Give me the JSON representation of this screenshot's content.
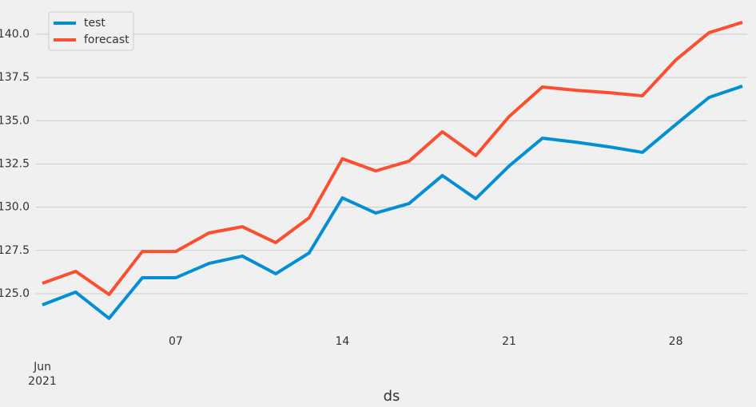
{
  "chart_data": {
    "type": "line",
    "x_label": "ds",
    "categories": [
      "Jun\n2021",
      null,
      null,
      null,
      "07",
      null,
      null,
      null,
      null,
      "14",
      null,
      null,
      null,
      null,
      "21",
      null,
      null,
      null,
      null,
      "28",
      null,
      null
    ],
    "series": [
      {
        "name": "test",
        "color": "#008fd5",
        "values": [
          124.35,
          125.09,
          123.57,
          125.92,
          125.92,
          126.75,
          127.17,
          126.15,
          127.35,
          130.54,
          129.66,
          130.21,
          131.83,
          130.49,
          132.38,
          133.99,
          133.76,
          133.49,
          133.17,
          134.78,
          136.35,
          137.0
        ]
      },
      {
        "name": "forecast",
        "color": "#fc4f30",
        "values": [
          125.6,
          126.29,
          124.95,
          127.44,
          127.44,
          128.51,
          128.87,
          127.95,
          129.38,
          132.8,
          132.1,
          132.66,
          134.36,
          132.98,
          135.24,
          136.95,
          136.76,
          136.62,
          136.44,
          138.51,
          140.09,
          140.69
        ]
      }
    ],
    "ylim": [
      123.06,
      141.75
    ],
    "yticks": [
      {
        "value": 125,
        "label": "125.0"
      },
      {
        "value": 127.5,
        "label": "127.5"
      },
      {
        "value": 130,
        "label": "130.0"
      },
      {
        "value": 132.5,
        "label": "132.5"
      },
      {
        "value": 135,
        "label": "135.0"
      },
      {
        "value": 137.5,
        "label": "137.5"
      },
      {
        "value": 140,
        "label": "140.0"
      }
    ],
    "grid": true,
    "legend": "upper left"
  }
}
